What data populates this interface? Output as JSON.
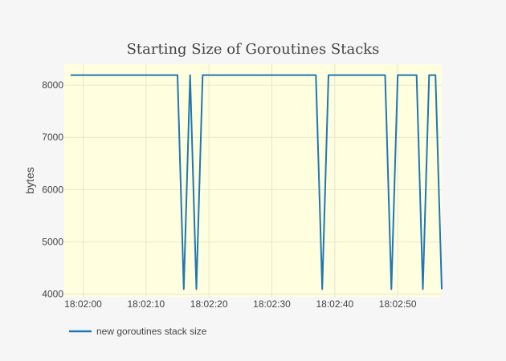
{
  "chart_data": {
    "type": "line",
    "title": "Starting Size of Goroutines Stacks",
    "xlabel": "",
    "ylabel": "bytes",
    "x_tick_labels": [
      "18:02:00",
      "18:02:10",
      "18:02:20",
      "18:02:30",
      "18:02:40",
      "18:02:50"
    ],
    "y_tick_labels": [
      "4000",
      "5000",
      "6000",
      "7000",
      "8000"
    ],
    "x_ticks_seconds": [
      0,
      10,
      20,
      30,
      40,
      50
    ],
    "y_ticks": [
      4000,
      5000,
      6000,
      7000,
      8000
    ],
    "xlim_seconds": [
      -3,
      57
    ],
    "ylim": [
      3950,
      8400
    ],
    "grid": true,
    "legend_position": "bottom-left",
    "plot_background": "#ffffe0",
    "line_color": "#1f77b4",
    "series": [
      {
        "name": "new goroutines stack size",
        "x_seconds": [
          -2,
          15,
          16,
          17,
          18,
          19,
          37,
          38,
          39,
          48,
          49,
          50,
          53,
          54,
          55,
          56,
          57
        ],
        "values": [
          8192,
          8192,
          4096,
          8192,
          4096,
          8192,
          8192,
          4096,
          8192,
          8192,
          4096,
          8192,
          8192,
          4096,
          8192,
          8192,
          4096
        ]
      }
    ]
  }
}
